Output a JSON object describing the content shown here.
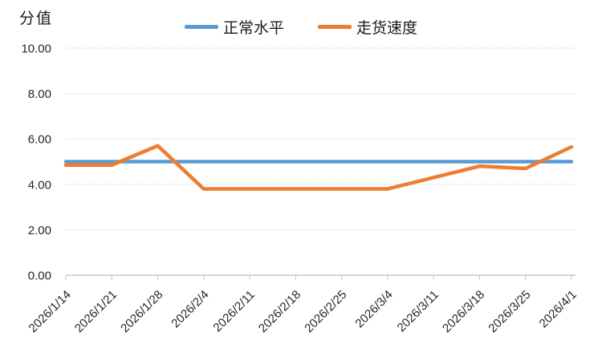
{
  "chart_data": {
    "type": "line",
    "axis_title": "分值",
    "categories": [
      "2026/1/14",
      "2026/1/21",
      "2026/1/28",
      "2026/2/4",
      "2026/2/11",
      "2026/2/18",
      "2026/2/25",
      "2026/3/4",
      "2026/3/11",
      "2026/3/18",
      "2026/3/25",
      "2026/4/1"
    ],
    "series": [
      {
        "name": "正常水平",
        "key": "normal-level",
        "color": "#5B9BD5",
        "values": [
          5.0,
          5.0,
          5.0,
          5.0,
          5.0,
          5.0,
          5.0,
          5.0,
          5.0,
          5.0,
          5.0,
          5.0
        ]
      },
      {
        "name": "走货速度",
        "key": "shipping-speed",
        "color": "#ED7D31",
        "values": [
          4.85,
          4.85,
          5.7,
          3.8,
          3.8,
          3.8,
          3.8,
          3.8,
          4.3,
          4.8,
          4.7,
          5.65
        ]
      }
    ],
    "y_axis": {
      "min": 0,
      "max": 10,
      "ticks": [
        {
          "value": 0,
          "label": "0.00"
        },
        {
          "value": 2,
          "label": "2.00"
        },
        {
          "value": 4,
          "label": "4.00"
        },
        {
          "value": 6,
          "label": "6.00"
        },
        {
          "value": 8,
          "label": "8.00"
        },
        {
          "value": 10,
          "label": "10.00"
        }
      ]
    },
    "legend_position": "top",
    "grid": true,
    "colors": {
      "gridline": "#D6D6D6",
      "axis_line": "#BFBFBF",
      "tick_mark": "#BFBFBF",
      "text": "#262626"
    }
  }
}
